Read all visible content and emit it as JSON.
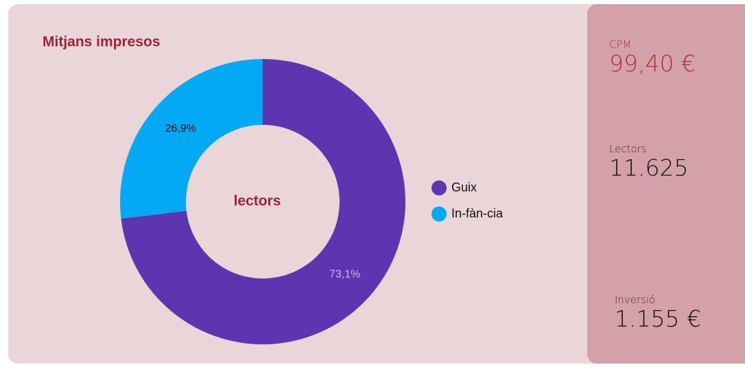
{
  "chart_data": {
    "type": "pie",
    "title": "Mitjans impresos",
    "center_label": "lectors",
    "categories": [
      "Guix",
      "In-fàn-cia"
    ],
    "values": [
      73.1,
      26.9
    ],
    "value_labels": [
      "73,1%",
      "26,9%"
    ],
    "colors": [
      "#5e35b1",
      "#03a9f4"
    ],
    "label_colors": [
      "#c9b8ea",
      "#111111"
    ],
    "donut": true,
    "legend": "right"
  },
  "kpis": [
    {
      "label": "CPM",
      "value": "99,40 €"
    },
    {
      "label": "Lectors",
      "value": "11.625"
    },
    {
      "label": "Inversió",
      "value": "1.155 €"
    }
  ]
}
